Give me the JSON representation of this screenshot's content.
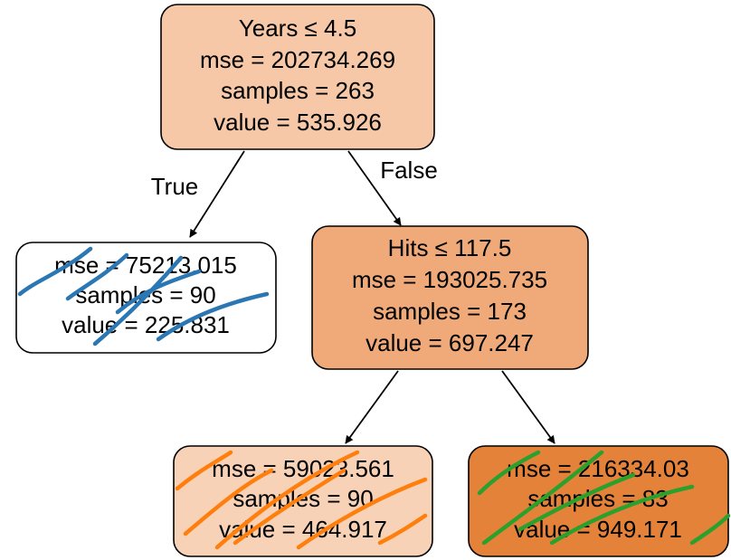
{
  "edges": {
    "true_label": "True",
    "false_label": "False"
  },
  "nodes": [
    {
      "lines": [
        "Years ≤ 4.5",
        "mse = 202734.269",
        "samples = 263",
        "value = 535.926"
      ]
    },
    {
      "lines": [
        "mse = 75213.015",
        "samples = 90",
        "value = 225.831"
      ]
    },
    {
      "lines": [
        "Hits ≤ 117.5",
        "mse = 193025.735",
        "samples = 173",
        "value = 697.247"
      ]
    },
    {
      "lines": [
        "mse = 59023.561",
        "samples = 90",
        "value = 464.917"
      ]
    },
    {
      "lines": [
        "mse = 216334.03",
        "samples = 83",
        "value = 949.171"
      ]
    }
  ]
}
